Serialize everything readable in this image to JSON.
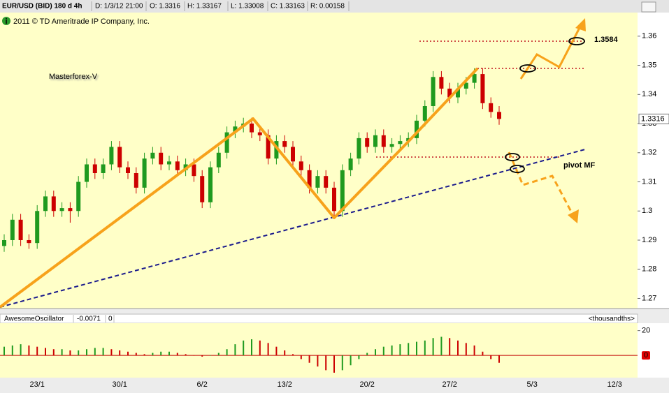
{
  "chart_data": {
    "type": "candlestick",
    "header": {
      "symbol": "EUR/USD (BID) 180 d 4h",
      "date": "D: 1/3/12 21:00",
      "open": "O: 1.3316",
      "high": "H: 1.33167",
      "low": "L: 1.33008",
      "close": "C: 1.33163",
      "range": "R: 0.00158"
    },
    "copyright": "2011 © TD Ameritrade IP Company, Inc.",
    "annotations": {
      "title": "Masterforex-V",
      "target": "1.3584",
      "pivot": "pivot MF"
    },
    "up_color": "#1f9a1f",
    "down_color": "#cc0000",
    "categories": [
      null,
      null,
      null,
      null,
      "23/1",
      null,
      null,
      null,
      null,
      null,
      null,
      null,
      null,
      null,
      "30/1",
      null,
      null,
      null,
      null,
      null,
      null,
      null,
      null,
      null,
      "6/2",
      null,
      null,
      null,
      null,
      null,
      null,
      null,
      null,
      null,
      "13/2",
      null,
      null,
      null,
      null,
      null,
      null,
      null,
      null,
      null,
      "20/2",
      null,
      null,
      null,
      null,
      null,
      null,
      null,
      null,
      null,
      "27/2",
      null,
      null,
      null,
      null,
      null,
      null,
      null,
      null,
      null,
      "5/3",
      null,
      null,
      null,
      null,
      null,
      null,
      null,
      null,
      null,
      "12/3",
      null,
      null,
      null
    ],
    "open": [
      1.288,
      1.29,
      1.297,
      1.29,
      1.289,
      1.3,
      1.305,
      1.3,
      1.301,
      1.3,
      1.31,
      1.316,
      1.313,
      1.316,
      1.322,
      1.315,
      1.313,
      1.308,
      1.318,
      1.32,
      1.316,
      1.317,
      1.314,
      1.316,
      1.312,
      1.303,
      1.315,
      1.32,
      1.327,
      1.329,
      1.33,
      1.327,
      1.326,
      1.318,
      1.324,
      1.322,
      1.317,
      1.314,
      1.308,
      1.312,
      1.308,
      1.3,
      1.314,
      1.318,
      1.325,
      1.322,
      1.326,
      1.322,
      1.323,
      1.324,
      1.325,
      1.331,
      1.336,
      1.346,
      1.342,
      1.339,
      1.342,
      1.344,
      1.347,
      1.337,
      1.334,
      null,
      null,
      null,
      null,
      null,
      null,
      null,
      null,
      null,
      null,
      null,
      null,
      null,
      null,
      null,
      null,
      null
    ],
    "high": [
      1.292,
      1.299,
      1.299,
      1.292,
      1.302,
      1.307,
      1.307,
      1.303,
      1.303,
      1.312,
      1.318,
      1.318,
      1.318,
      1.324,
      1.324,
      1.317,
      1.315,
      1.32,
      1.322,
      1.322,
      1.319,
      1.319,
      1.318,
      1.318,
      1.314,
      1.317,
      1.322,
      1.329,
      1.331,
      1.332,
      1.332,
      1.329,
      1.328,
      1.326,
      1.326,
      1.324,
      1.319,
      1.316,
      1.314,
      1.314,
      1.31,
      1.316,
      1.32,
      1.327,
      1.327,
      1.328,
      1.328,
      1.325,
      1.326,
      1.327,
      1.333,
      1.338,
      1.348,
      1.348,
      1.344,
      1.344,
      1.346,
      1.349,
      1.349,
      1.339,
      1.336,
      null,
      null,
      null,
      null,
      null,
      null,
      null,
      null,
      null,
      null,
      null,
      null,
      null,
      null,
      null,
      null,
      null
    ],
    "low": [
      1.286,
      1.288,
      1.288,
      1.287,
      1.287,
      1.298,
      1.298,
      1.298,
      1.296,
      1.298,
      1.308,
      1.311,
      1.311,
      1.314,
      1.313,
      1.311,
      1.306,
      1.306,
      1.316,
      1.314,
      1.314,
      1.312,
      1.312,
      1.31,
      1.301,
      1.301,
      1.313,
      1.318,
      1.325,
      1.327,
      1.325,
      1.324,
      1.316,
      1.316,
      1.32,
      1.315,
      1.312,
      1.306,
      1.306,
      1.306,
      1.298,
      1.298,
      1.312,
      1.316,
      1.32,
      1.32,
      1.32,
      1.32,
      1.321,
      1.322,
      1.323,
      1.329,
      1.334,
      1.34,
      1.337,
      1.337,
      1.34,
      1.342,
      1.335,
      1.332,
      1.3296,
      null,
      null,
      null,
      null,
      null,
      null,
      null,
      null,
      null,
      null,
      null,
      null,
      null,
      null,
      null,
      null,
      null
    ],
    "close": [
      1.29,
      1.297,
      1.29,
      1.289,
      1.3,
      1.305,
      1.3,
      1.301,
      1.3,
      1.31,
      1.316,
      1.313,
      1.316,
      1.322,
      1.315,
      1.313,
      1.308,
      1.318,
      1.32,
      1.316,
      1.317,
      1.314,
      1.316,
      1.312,
      1.303,
      1.315,
      1.32,
      1.327,
      1.329,
      1.33,
      1.327,
      1.326,
      1.318,
      1.324,
      1.322,
      1.317,
      1.314,
      1.308,
      1.312,
      1.308,
      1.3,
      1.314,
      1.318,
      1.325,
      1.322,
      1.326,
      1.322,
      1.323,
      1.324,
      1.325,
      1.331,
      1.336,
      1.346,
      1.342,
      1.339,
      1.342,
      1.344,
      1.347,
      1.337,
      1.334,
      1.3316,
      null,
      null,
      null,
      null,
      null,
      null,
      null,
      null,
      null,
      null,
      null,
      null,
      null,
      null,
      null,
      null,
      null
    ],
    "last_price": 1.3316,
    "ylim": [
      1.267,
      1.3705
    ],
    "yticks": [
      1.27,
      1.28,
      1.29,
      1.3,
      1.31,
      1.32,
      1.33,
      1.34,
      1.35,
      1.36
    ],
    "oscillator": {
      "name": "AwesomeOscillator",
      "value_text": "-0.0071",
      "param_text": "0",
      "unit": "<thousandths>",
      "ylim": [
        -18,
        26
      ],
      "yticks": [
        0,
        20
      ],
      "values": [
        7,
        8,
        9,
        8,
        7,
        6,
        5,
        5,
        4,
        4,
        5,
        6,
        6,
        5,
        4,
        3,
        2,
        1,
        2,
        3,
        3,
        2,
        1,
        0,
        -1,
        0,
        2,
        5,
        9,
        12,
        13,
        12,
        10,
        7,
        4,
        1,
        -3,
        -6,
        -9,
        -12,
        -14,
        -12,
        -8,
        -3,
        2,
        5,
        7,
        8,
        9,
        10,
        11,
        12,
        14,
        15,
        14,
        12,
        10,
        8,
        3,
        -3,
        -6,
        null,
        null,
        null,
        null,
        null,
        null,
        null,
        null,
        null,
        null,
        null,
        null,
        null,
        null,
        null,
        null,
        null
      ]
    }
  }
}
